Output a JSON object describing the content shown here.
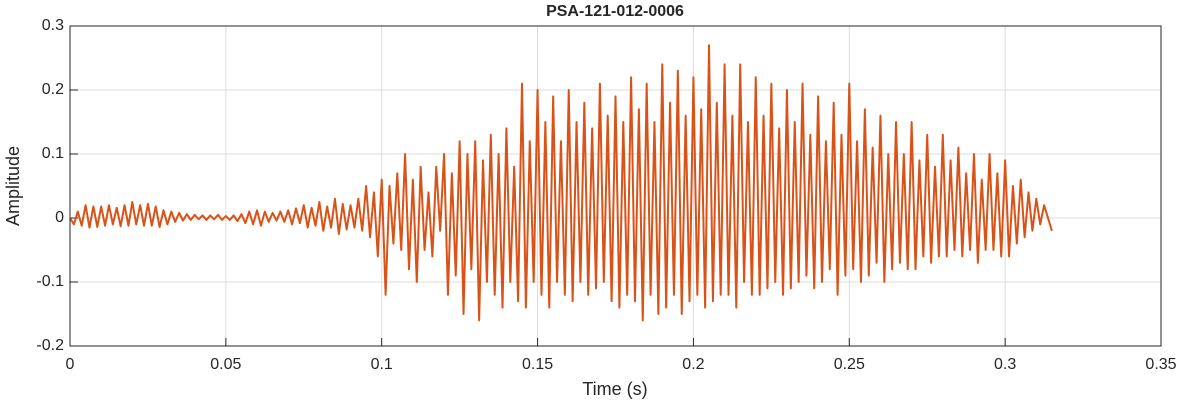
{
  "chart_data": {
    "type": "line",
    "title": "PSA-121-012-0006",
    "x_label": "Time (s)",
    "y_label": "Amplitude",
    "xlim": [
      0,
      0.35
    ],
    "xticks": [
      0,
      0.05,
      0.1,
      0.15,
      0.2,
      0.25,
      0.3,
      0.35
    ],
    "ylim": [
      -0.2,
      0.3
    ],
    "yticks": [
      -0.2,
      -0.1,
      0,
      0.1,
      0.2,
      0.3
    ],
    "grid": true,
    "x": [
      0,
      0.00125,
      0.0025,
      0.00375,
      0.005,
      0.00625,
      0.0075,
      0.00875,
      0.01,
      0.01125,
      0.0125,
      0.01375,
      0.015,
      0.01625,
      0.0175,
      0.01875,
      0.02,
      0.02125,
      0.0225,
      0.02375,
      0.025,
      0.02625,
      0.0275,
      0.02875,
      0.03,
      0.03125,
      0.0325,
      0.03375,
      0.035,
      0.03625,
      0.0375,
      0.03875,
      0.04,
      0.04125,
      0.0425,
      0.04375,
      0.045,
      0.04625,
      0.0475,
      0.04875,
      0.05,
      0.05125,
      0.0525,
      0.05375,
      0.055,
      0.05625,
      0.0575,
      0.05875,
      0.06,
      0.06125,
      0.0625,
      0.06375,
      0.065,
      0.06625,
      0.0675,
      0.06875,
      0.07,
      0.07125,
      0.0725,
      0.07375,
      0.075,
      0.07625,
      0.0775,
      0.07875,
      0.08,
      0.08125,
      0.0825,
      0.08375,
      0.085,
      0.08625,
      0.0875,
      0.08875,
      0.09,
      0.09125,
      0.0925,
      0.09375,
      0.095,
      0.09625,
      0.0975,
      0.09875,
      0.1,
      0.10125,
      0.1025,
      0.10375,
      0.105,
      0.10625,
      0.1075,
      0.10875,
      0.11,
      0.11125,
      0.1125,
      0.11375,
      0.115,
      0.11625,
      0.1175,
      0.11875,
      0.12,
      0.12125,
      0.1225,
      0.12375,
      0.125,
      0.12625,
      0.1275,
      0.12875,
      0.13,
      0.13125,
      0.1325,
      0.13375,
      0.135,
      0.13625,
      0.1375,
      0.13875,
      0.14,
      0.14125,
      0.1425,
      0.14375,
      0.145,
      0.14625,
      0.1475,
      0.14875,
      0.15,
      0.15125,
      0.1525,
      0.15375,
      0.155,
      0.15625,
      0.1575,
      0.15875,
      0.16,
      0.16125,
      0.1625,
      0.16375,
      0.165,
      0.16625,
      0.1675,
      0.16875,
      0.17,
      0.17125,
      0.1725,
      0.17375,
      0.175,
      0.17625,
      0.1775,
      0.17875,
      0.18,
      0.18125,
      0.1825,
      0.18375,
      0.185,
      0.18625,
      0.1875,
      0.18875,
      0.19,
      0.19125,
      0.1925,
      0.19375,
      0.195,
      0.19625,
      0.1975,
      0.19875,
      0.2,
      0.20125,
      0.2025,
      0.20375,
      0.205,
      0.20625,
      0.2075,
      0.20875,
      0.21,
      0.21125,
      0.2125,
      0.21375,
      0.215,
      0.21625,
      0.2175,
      0.21875,
      0.22,
      0.22125,
      0.2225,
      0.22375,
      0.225,
      0.22625,
      0.2275,
      0.22875,
      0.23,
      0.23125,
      0.2325,
      0.23375,
      0.235,
      0.23625,
      0.2375,
      0.23875,
      0.24,
      0.24125,
      0.2425,
      0.24375,
      0.245,
      0.24625,
      0.2475,
      0.24875,
      0.25,
      0.25125,
      0.2525,
      0.25375,
      0.255,
      0.25625,
      0.2575,
      0.25875,
      0.26,
      0.26125,
      0.2625,
      0.26375,
      0.265,
      0.26625,
      0.2675,
      0.26875,
      0.27,
      0.27125,
      0.2725,
      0.27375,
      0.275,
      0.27625,
      0.2775,
      0.27875,
      0.28,
      0.28125,
      0.2825,
      0.28375,
      0.285,
      0.28625,
      0.2875,
      0.28875,
      0.29,
      0.29125,
      0.2925,
      0.29375,
      0.295,
      0.29625,
      0.2975,
      0.29875,
      0.3,
      0.30125,
      0.3025,
      0.30375,
      0.305,
      0.30625,
      0.3075,
      0.30875,
      0.31,
      0.31125,
      0.3125,
      0.31375,
      0.315
    ],
    "series": [
      {
        "color": "#D95319",
        "values": [
          0,
          -0.01,
          0.01,
          -0.012,
          0.02,
          -0.015,
          0.018,
          -0.014,
          0.018,
          -0.012,
          0.02,
          -0.01,
          0.016,
          -0.013,
          0.02,
          -0.012,
          0.025,
          -0.01,
          0.02,
          -0.012,
          0.022,
          -0.012,
          0.018,
          -0.014,
          0.012,
          -0.01,
          0.01,
          -0.006,
          0.008,
          -0.004,
          0.006,
          -0.003,
          0.005,
          -0.002,
          0.004,
          -0.003,
          0.004,
          -0.002,
          0.005,
          -0.003,
          0.003,
          -0.003,
          0.004,
          -0.005,
          0.006,
          -0.008,
          0.01,
          -0.01,
          0.012,
          -0.012,
          0.01,
          -0.006,
          0.008,
          -0.004,
          0.01,
          -0.006,
          0.012,
          -0.01,
          0.015,
          -0.008,
          0.02,
          -0.015,
          0.016,
          -0.012,
          0.025,
          -0.02,
          0.018,
          -0.015,
          0.03,
          -0.025,
          0.022,
          -0.018,
          0.02,
          -0.015,
          0.03,
          -0.02,
          0.05,
          -0.03,
          0.04,
          -0.06,
          0.06,
          -0.12,
          0.05,
          -0.04,
          0.07,
          -0.05,
          0.1,
          -0.08,
          0.06,
          -0.1,
          0.08,
          -0.05,
          0.04,
          -0.06,
          0.08,
          -0.02,
          0.1,
          -0.12,
          0.07,
          -0.09,
          0.12,
          -0.15,
          0.1,
          -0.08,
          0.12,
          -0.16,
          0.09,
          -0.1,
          0.13,
          -0.12,
          0.1,
          -0.14,
          0.14,
          -0.1,
          0.08,
          -0.13,
          0.21,
          -0.14,
          0.12,
          -0.1,
          0.2,
          -0.12,
          0.15,
          -0.14,
          0.19,
          -0.1,
          0.12,
          -0.12,
          0.2,
          -0.13,
          0.15,
          -0.1,
          0.18,
          -0.12,
          0.14,
          -0.11,
          0.21,
          -0.1,
          0.16,
          -0.13,
          0.19,
          -0.14,
          0.15,
          -0.12,
          0.22,
          -0.13,
          0.17,
          -0.16,
          0.21,
          -0.12,
          0.15,
          -0.15,
          0.24,
          -0.14,
          0.18,
          -0.12,
          0.23,
          -0.15,
          0.16,
          -0.13,
          0.22,
          -0.12,
          0.17,
          -0.14,
          0.27,
          -0.13,
          0.18,
          -0.12,
          0.24,
          -0.12,
          0.16,
          -0.14,
          0.24,
          -0.1,
          0.15,
          -0.12,
          0.22,
          -0.12,
          0.16,
          -0.11,
          0.21,
          -0.1,
          0.14,
          -0.12,
          0.2,
          -0.11,
          0.15,
          -0.1,
          0.21,
          -0.09,
          0.13,
          -0.11,
          0.19,
          -0.1,
          0.12,
          -0.08,
          0.18,
          -0.12,
          0.13,
          -0.09,
          0.21,
          -0.08,
          0.12,
          -0.1,
          0.17,
          -0.09,
          0.11,
          -0.07,
          0.16,
          -0.1,
          0.1,
          -0.08,
          0.15,
          -0.07,
          0.1,
          -0.08,
          0.15,
          -0.08,
          0.09,
          -0.06,
          0.13,
          -0.07,
          0.08,
          -0.06,
          0.13,
          -0.06,
          0.09,
          -0.05,
          0.11,
          -0.06,
          0.07,
          -0.05,
          0.1,
          -0.07,
          0.06,
          -0.05,
          0.1,
          -0.05,
          0.07,
          -0.06,
          0.09,
          -0.06,
          0.05,
          -0.04,
          0.06,
          -0.03,
          0.04,
          -0.02,
          0.03,
          -0.01,
          0.02,
          0,
          -0.02
        ]
      }
    ]
  }
}
